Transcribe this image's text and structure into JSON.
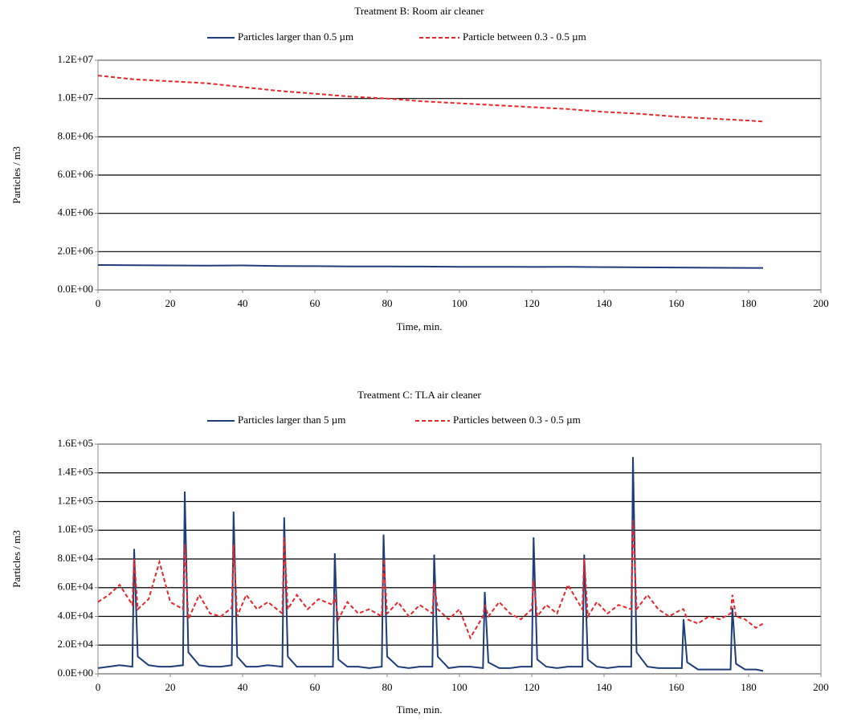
{
  "chart_data": [
    {
      "type": "line",
      "title": "Treatment B: Room air cleaner",
      "x_label": "Time, min.",
      "y_label": "Particles  / m3",
      "x": [
        0,
        10,
        20,
        30,
        40,
        50,
        60,
        70,
        80,
        90,
        100,
        110,
        120,
        130,
        140,
        150,
        160,
        170,
        180,
        184
      ],
      "series": [
        {
          "name": "Particles larger than 0.5 µm",
          "color": "#1f3d7a",
          "dashed": false,
          "values": [
            1300000,
            1290000,
            1280000,
            1270000,
            1280000,
            1250000,
            1240000,
            1230000,
            1230000,
            1220000,
            1210000,
            1210000,
            1200000,
            1210000,
            1190000,
            1180000,
            1170000,
            1160000,
            1150000,
            1150000
          ]
        },
        {
          "name": "Particle between 0.3 - 0.5 µm",
          "color": "#e8272a",
          "dashed": true,
          "values": [
            11200000,
            11000000,
            10900000,
            10800000,
            10600000,
            10400000,
            10250000,
            10100000,
            10000000,
            9850000,
            9750000,
            9650000,
            9550000,
            9450000,
            9300000,
            9200000,
            9050000,
            8950000,
            8850000,
            8800000
          ]
        }
      ],
      "xlim": [
        0,
        200
      ],
      "xticks": [
        0,
        20,
        40,
        60,
        80,
        100,
        120,
        140,
        160,
        180,
        200
      ],
      "ylim": [
        0,
        12000000
      ],
      "yticks": [
        {
          "value": 0,
          "label": "0.0E+00"
        },
        {
          "value": 2000000,
          "label": "2.0E+06"
        },
        {
          "value": 4000000,
          "label": "4.0E+06"
        },
        {
          "value": 6000000,
          "label": "6.0E+06"
        },
        {
          "value": 8000000,
          "label": "8.0E+06"
        },
        {
          "value": 10000000,
          "label": "1.0E+07"
        },
        {
          "value": 12000000,
          "label": "1.2E+07"
        }
      ],
      "grid": true
    },
    {
      "type": "line",
      "title": "Treatment C: TLA air cleaner",
      "x_label": "Time, min.",
      "y_label": "Particles / m3",
      "x": [
        0,
        3,
        6,
        9.5,
        10,
        11,
        14,
        17,
        20,
        23.5,
        24,
        25,
        28,
        31,
        34,
        37,
        37.5,
        38.5,
        41,
        44,
        47,
        51,
        51.5,
        52.5,
        55,
        58,
        61,
        65,
        65.5,
        66.5,
        69,
        72,
        75,
        78.5,
        79,
        80,
        83,
        86,
        89,
        92.5,
        93,
        94,
        97,
        100,
        103,
        106.5,
        107,
        108,
        111,
        114,
        117,
        120,
        120.5,
        121.5,
        124,
        127,
        130,
        134,
        134.5,
        135.5,
        138,
        141,
        144,
        147.5,
        148,
        149,
        152,
        155,
        158,
        161.5,
        162,
        163,
        166,
        169,
        172,
        175,
        175.5,
        176.5,
        179,
        182,
        184
      ],
      "series": [
        {
          "name": "Particles larger than 5 µm",
          "color": "#1f3d7a",
          "dashed": false,
          "values": [
            4000,
            5000,
            6000,
            5000,
            87000,
            12000,
            6000,
            5000,
            5000,
            6000,
            127000,
            15000,
            6000,
            5000,
            5000,
            6000,
            113000,
            12000,
            5000,
            5000,
            6000,
            5000,
            109000,
            12000,
            5000,
            5000,
            5000,
            5000,
            84000,
            10000,
            5000,
            5000,
            4000,
            5000,
            97000,
            12000,
            5000,
            4000,
            5000,
            5000,
            83000,
            12000,
            4000,
            5000,
            5000,
            4000,
            57000,
            8000,
            4000,
            4000,
            5000,
            5000,
            95000,
            10000,
            5000,
            4000,
            5000,
            5000,
            83000,
            10000,
            5000,
            4000,
            5000,
            5000,
            151000,
            15000,
            5000,
            4000,
            4000,
            4000,
            38000,
            8000,
            3000,
            3000,
            3000,
            3000,
            46000,
            7000,
            3000,
            3000,
            2000
          ]
        },
        {
          "name": "Particles between 0.3 - 0.5 µm",
          "color": "#e8272a",
          "dashed": true,
          "values": [
            50000,
            55000,
            62000,
            48000,
            80000,
            45000,
            52000,
            78000,
            50000,
            45000,
            90000,
            38000,
            55000,
            42000,
            40000,
            46000,
            90000,
            40000,
            55000,
            45000,
            50000,
            42000,
            95000,
            45000,
            55000,
            45000,
            52000,
            48000,
            55000,
            38000,
            50000,
            42000,
            45000,
            40000,
            80000,
            42000,
            50000,
            40000,
            48000,
            42000,
            63000,
            45000,
            38000,
            45000,
            25000,
            40000,
            48000,
            40000,
            50000,
            42000,
            38000,
            45000,
            65000,
            40000,
            48000,
            42000,
            62000,
            45000,
            80000,
            40000,
            50000,
            42000,
            48000,
            45000,
            107000,
            45000,
            55000,
            45000,
            40000,
            45000,
            45000,
            38000,
            35000,
            40000,
            38000,
            42000,
            55000,
            40000,
            38000,
            32000,
            35000
          ]
        }
      ],
      "xlim": [
        0,
        200
      ],
      "xticks": [
        0,
        20,
        40,
        60,
        80,
        100,
        120,
        140,
        160,
        180,
        200
      ],
      "ylim": [
        0,
        160000
      ],
      "yticks": [
        {
          "value": 0,
          "label": "0.0E+00"
        },
        {
          "value": 20000,
          "label": "2.0E+04"
        },
        {
          "value": 40000,
          "label": "4.0E+04"
        },
        {
          "value": 60000,
          "label": "6.0E+04"
        },
        {
          "value": 80000,
          "label": "8.0E+04"
        },
        {
          "value": 100000,
          "label": "1.0E+05"
        },
        {
          "value": 120000,
          "label": "1.2E+05"
        },
        {
          "value": 140000,
          "label": "1.4E+05"
        },
        {
          "value": 160000,
          "label": "1.6E+05"
        }
      ],
      "grid": true
    }
  ]
}
